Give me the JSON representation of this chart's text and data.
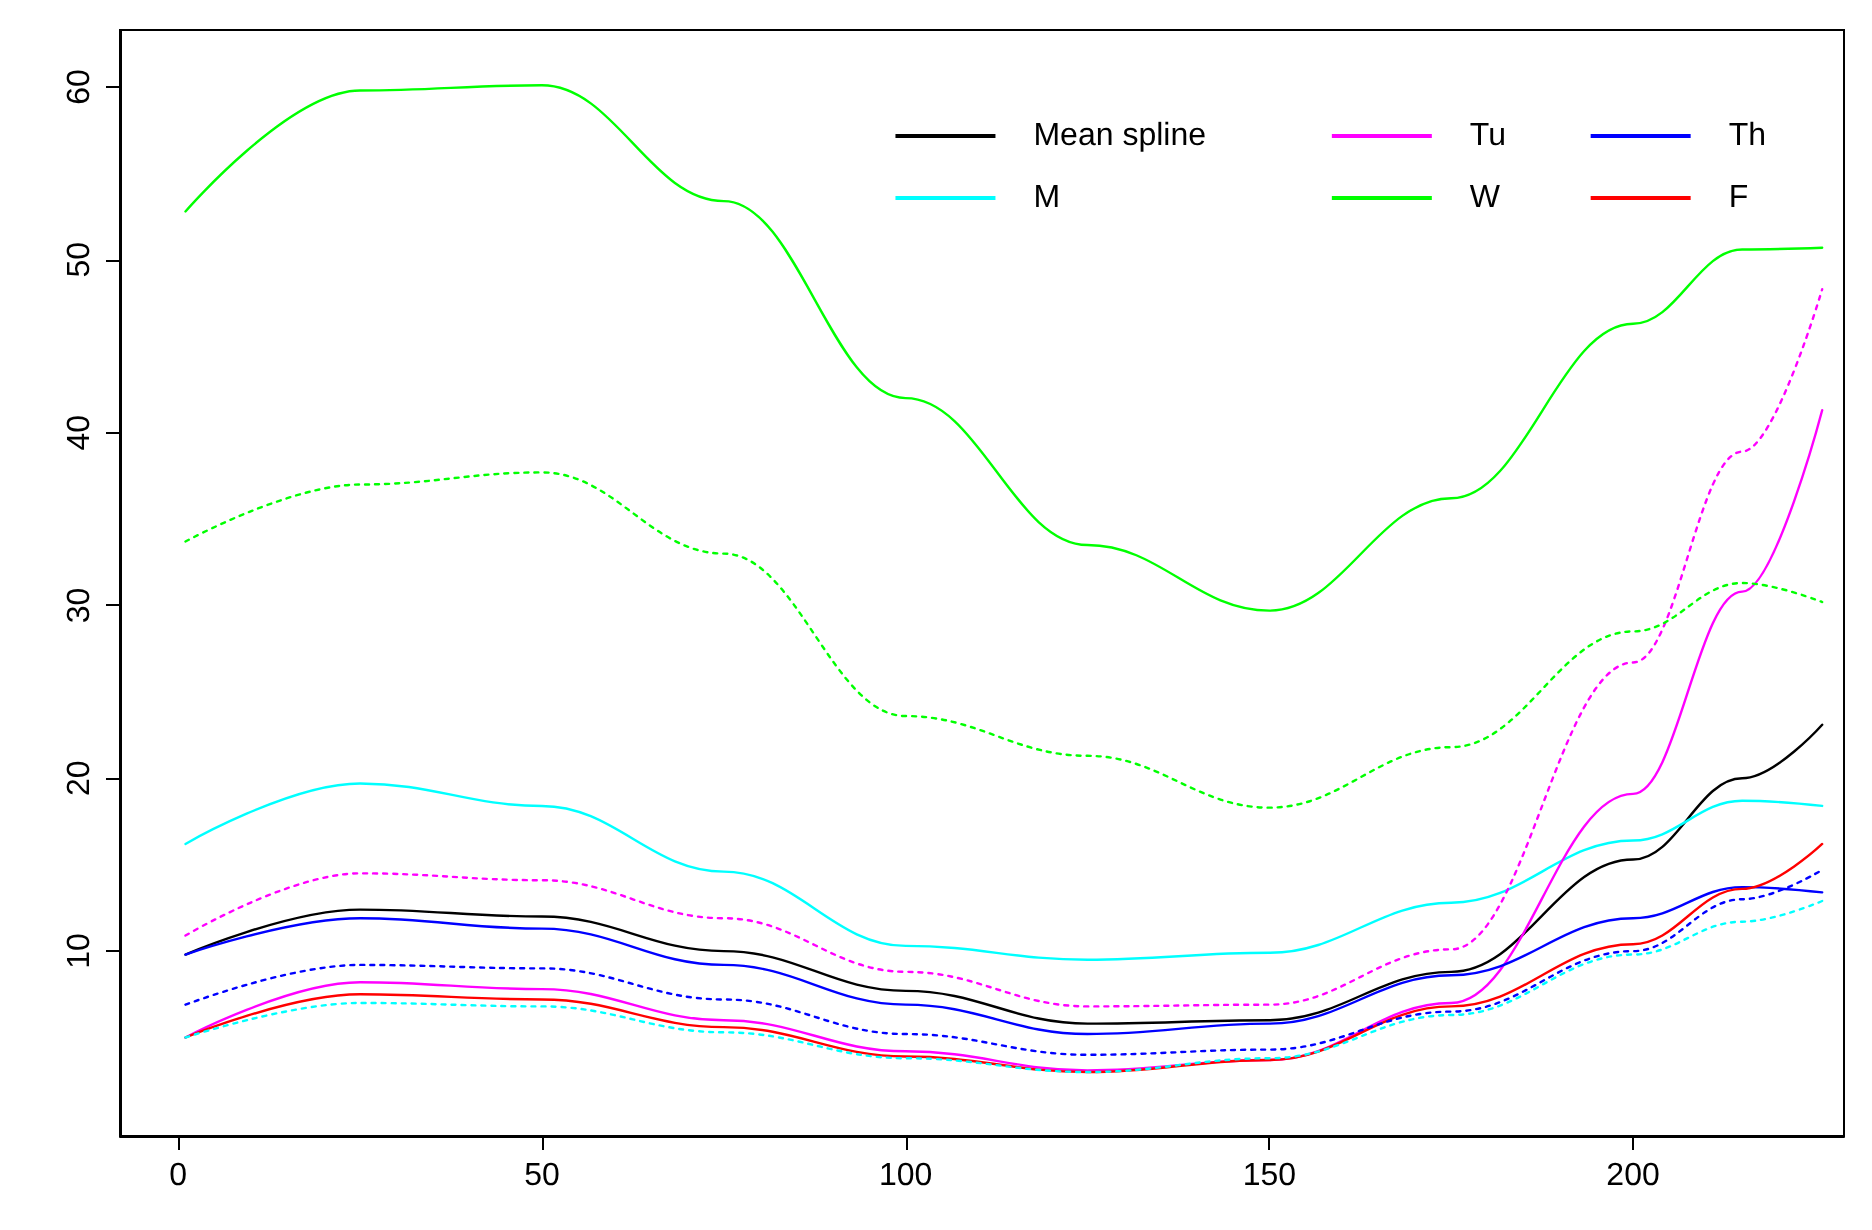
{
  "chart_data": {
    "type": "line",
    "xlim": [
      -8,
      229
    ],
    "ylim": [
      -0.7,
      63.3
    ],
    "xticks": [
      0,
      50,
      100,
      150,
      200
    ],
    "yticks": [
      10,
      20,
      30,
      40,
      50,
      60
    ],
    "grid": false,
    "marker": "none",
    "legend": "top right",
    "x": [
      1,
      25,
      50,
      75,
      100,
      125,
      150,
      175,
      200,
      215,
      226
    ],
    "series": [
      {
        "name": "Mean spline",
        "color": "#000000",
        "line_style": "solid",
        "values": [
          9.8,
          12.4,
          12.0,
          10.0,
          7.7,
          5.8,
          6.0,
          8.8,
          15.3,
          20.0,
          23.1
        ]
      },
      {
        "name": "M",
        "color": "#00ffff",
        "line_style": "solid",
        "values": [
          16.2,
          19.7,
          18.4,
          14.6,
          10.3,
          9.5,
          9.9,
          12.8,
          16.4,
          18.7,
          18.4
        ]
      },
      {
        "name": "Tu",
        "color": "#ff00ff",
        "line_style": "solid",
        "values": [
          5.0,
          8.2,
          7.8,
          6.0,
          4.2,
          3.1,
          3.7,
          7.0,
          19.1,
          30.8,
          41.3
        ]
      },
      {
        "name": "W",
        "color": "#00ff00",
        "line_style": "solid",
        "values": [
          52.8,
          59.8,
          60.1,
          53.4,
          42.0,
          33.5,
          29.7,
          36.2,
          46.3,
          50.6,
          50.7
        ]
      },
      {
        "name": "Th",
        "color": "#0000ff",
        "line_style": "solid",
        "values": [
          9.8,
          11.9,
          11.3,
          9.2,
          6.9,
          5.2,
          5.8,
          8.6,
          11.9,
          13.7,
          13.4
        ]
      },
      {
        "name": "F",
        "color": "#ff0000",
        "line_style": "solid",
        "values": [
          5.0,
          7.5,
          7.2,
          5.6,
          3.9,
          3.0,
          3.7,
          6.8,
          10.4,
          13.6,
          16.2
        ]
      },
      {
        "color": "#00ffff",
        "line_style": "dotted",
        "values": [
          5.0,
          7.0,
          6.8,
          5.3,
          3.8,
          3.0,
          3.8,
          6.3,
          9.8,
          11.7,
          12.9
        ]
      },
      {
        "color": "#ff00ff",
        "line_style": "dotted",
        "values": [
          10.9,
          14.5,
          14.1,
          11.9,
          8.8,
          6.8,
          6.9,
          10.1,
          26.7,
          38.9,
          48.3
        ]
      },
      {
        "color": "#00ff00",
        "line_style": "dotted",
        "values": [
          33.7,
          37.0,
          37.7,
          33.0,
          23.6,
          21.3,
          18.3,
          21.8,
          28.5,
          31.3,
          30.2
        ]
      },
      {
        "color": "#0000ff",
        "line_style": "dotted",
        "values": [
          6.9,
          9.2,
          9.0,
          7.2,
          5.2,
          4.0,
          4.3,
          6.5,
          10.0,
          13.0,
          14.7
        ]
      }
    ]
  }
}
